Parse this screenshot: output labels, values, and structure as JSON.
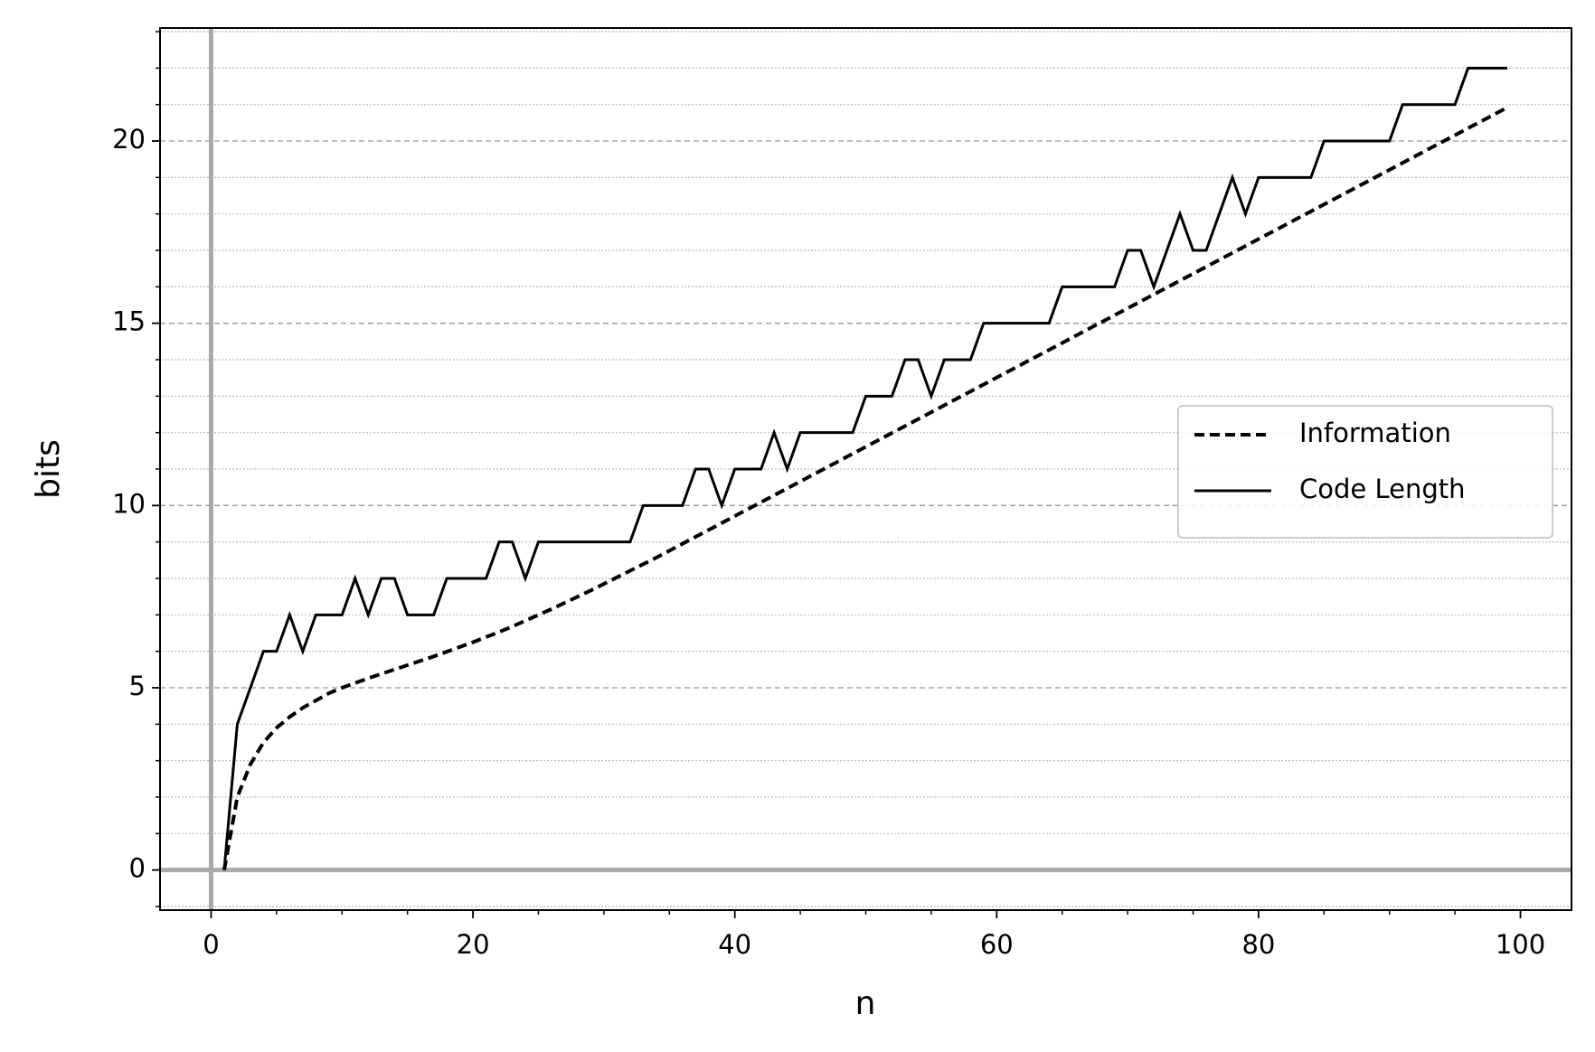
{
  "chart_data": {
    "type": "line",
    "xlabel": "n",
    "ylabel": "bits",
    "x": [
      1,
      2,
      3,
      4,
      5,
      6,
      7,
      8,
      9,
      10,
      11,
      12,
      13,
      14,
      15,
      16,
      17,
      18,
      19,
      20,
      21,
      22,
      23,
      24,
      25,
      26,
      27,
      28,
      29,
      30,
      31,
      32,
      33,
      34,
      35,
      36,
      37,
      38,
      39,
      40,
      41,
      42,
      43,
      44,
      45,
      46,
      47,
      48,
      49,
      50,
      51,
      52,
      53,
      54,
      55,
      56,
      57,
      58,
      59,
      60,
      61,
      62,
      63,
      64,
      65,
      66,
      67,
      68,
      69,
      70,
      71,
      72,
      73,
      74,
      75,
      76,
      77,
      78,
      79,
      80,
      81,
      82,
      83,
      84,
      85,
      86,
      87,
      88,
      89,
      90,
      91,
      92,
      93,
      94,
      95,
      96,
      97,
      98,
      99
    ],
    "series": [
      {
        "name": "Information",
        "color": "#000000",
        "dash": true,
        "values": [
          0,
          2.0,
          2.9,
          3.5,
          3.9,
          4.2,
          4.45,
          4.65,
          4.85,
          5.0,
          5.13,
          5.26,
          5.38,
          5.5,
          5.62,
          5.74,
          5.86,
          5.99,
          6.12,
          6.25,
          6.39,
          6.53,
          6.68,
          6.84,
          7.0,
          7.16,
          7.33,
          7.5,
          7.67,
          7.85,
          8.03,
          8.21,
          8.39,
          8.57,
          8.76,
          8.95,
          9.14,
          9.33,
          9.52,
          9.71,
          9.9,
          10.09,
          10.28,
          10.47,
          10.66,
          10.85,
          11.04,
          11.23,
          11.42,
          11.61,
          11.8,
          11.99,
          12.18,
          12.37,
          12.56,
          12.75,
          12.94,
          13.13,
          13.32,
          13.51,
          13.7,
          13.89,
          14.08,
          14.27,
          14.46,
          14.65,
          14.84,
          15.03,
          15.22,
          15.41,
          15.6,
          15.79,
          15.98,
          16.17,
          16.36,
          16.55,
          16.74,
          16.93,
          17.12,
          17.31,
          17.5,
          17.69,
          17.88,
          18.07,
          18.26,
          18.45,
          18.64,
          18.83,
          19.02,
          19.21,
          19.4,
          19.59,
          19.78,
          19.97,
          20.16,
          20.35,
          20.54,
          20.73,
          20.92
        ]
      },
      {
        "name": "Code Length",
        "color": "#000000",
        "dash": false,
        "values": [
          0,
          4,
          5,
          6,
          6,
          7,
          6,
          7,
          7,
          7,
          8,
          7,
          8,
          8,
          7,
          7,
          7,
          8,
          8,
          8,
          8,
          9,
          9,
          8,
          9,
          9,
          9,
          9,
          9,
          9,
          9,
          9,
          10,
          10,
          10,
          10,
          11,
          11,
          10,
          11,
          11,
          11,
          12,
          11,
          12,
          12,
          12,
          12,
          12,
          13,
          13,
          13,
          14,
          14,
          13,
          14,
          14,
          14,
          15,
          15,
          15,
          15,
          15,
          15,
          16,
          16,
          16,
          16,
          16,
          17,
          17,
          16,
          17,
          18,
          17,
          17,
          18,
          19,
          18,
          19,
          19,
          19,
          19,
          19,
          20,
          20,
          20,
          20,
          20,
          20,
          21,
          21,
          21,
          21,
          21,
          22,
          22,
          22,
          22
        ]
      }
    ],
    "xlim": [
      -3.9,
      103.9
    ],
    "ylim": [
      -1.1,
      23.1
    ],
    "xticks": [
      0,
      20,
      40,
      60,
      80,
      100
    ],
    "yticks": [
      0,
      5,
      10,
      15,
      20
    ],
    "xminorticks": [
      5,
      10,
      15,
      25,
      30,
      35,
      45,
      50,
      55,
      65,
      70,
      75,
      85,
      90,
      95
    ],
    "yminorticks": [
      -1,
      1,
      2,
      3,
      4,
      6,
      7,
      8,
      9,
      11,
      12,
      13,
      14,
      16,
      17,
      18,
      19,
      21,
      22,
      23
    ],
    "grid": true,
    "refline_x": 0,
    "refline_y": 0,
    "legend": "center right"
  }
}
